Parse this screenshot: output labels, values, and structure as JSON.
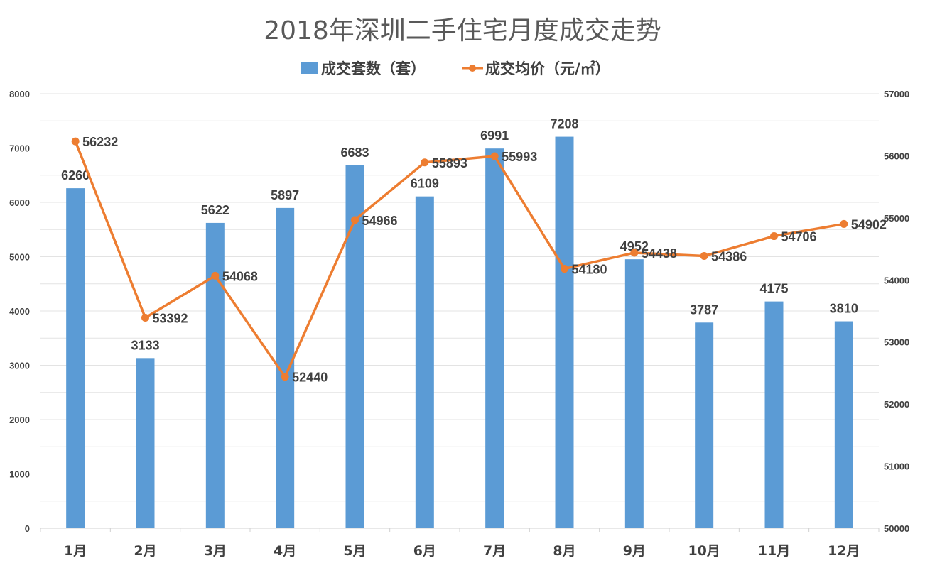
{
  "chart_data": {
    "type": "bar+line",
    "title": "2018年深圳二手住宅月度成交走势",
    "categories": [
      "1月",
      "2月",
      "3月",
      "4月",
      "5月",
      "6月",
      "7月",
      "8月",
      "9月",
      "10月",
      "11月",
      "12月"
    ],
    "series": [
      {
        "name": "成交套数（套）",
        "type": "bar",
        "axis": "left",
        "color": "#5b9bd5",
        "values": [
          6260,
          3133,
          5622,
          5897,
          6683,
          6109,
          6991,
          7208,
          4952,
          3787,
          4175,
          3810
        ]
      },
      {
        "name": "成交均价（元/㎡）",
        "type": "line",
        "axis": "right",
        "color": "#ed7d31",
        "values": [
          56232,
          53392,
          54068,
          52440,
          54966,
          55893,
          55993,
          54180,
          54438,
          54386,
          54706,
          54902
        ]
      }
    ],
    "y_left": {
      "ylim": [
        0,
        8000
      ],
      "ticks": [
        "0",
        "1000",
        "2000",
        "3000",
        "4000",
        "5000",
        "6000",
        "7000",
        "8000"
      ]
    },
    "y_right": {
      "ylim": [
        50000,
        57000
      ],
      "ticks": [
        "50000",
        "51000",
        "52000",
        "53000",
        "54000",
        "55000",
        "56000",
        "57000"
      ]
    },
    "grid": true,
    "legend_position": "top-center"
  }
}
